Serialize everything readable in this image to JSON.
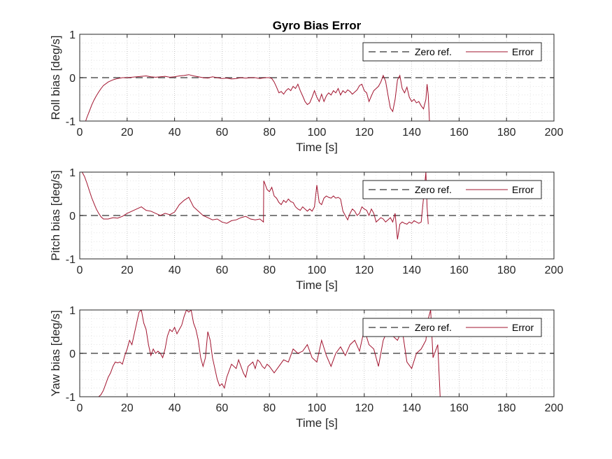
{
  "chart_data": [
    {
      "type": "line",
      "title": "Gyro Bias Error",
      "xlabel": "Time [s]",
      "ylabel": "Roll bias [deg/s]",
      "xlim": [
        0,
        200
      ],
      "ylim": [
        -1,
        1
      ],
      "xticks": [
        "0",
        "20",
        "40",
        "60",
        "80",
        "100",
        "120",
        "140",
        "160",
        "180",
        "200"
      ],
      "yticks": [
        "-1",
        "0",
        "1"
      ],
      "grid": true,
      "minor_grid": true,
      "legend": "top-right",
      "series": [
        {
          "name": "Zero ref.",
          "color": "#555555",
          "style": "dashed",
          "x": [
            0,
            200
          ],
          "y": [
            0,
            0
          ]
        },
        {
          "name": "Error",
          "color": "#a2142f",
          "style": "solid",
          "x": [
            2.5,
            3,
            4,
            5,
            6,
            7,
            8,
            9,
            10,
            12,
            14,
            16,
            18,
            20,
            22,
            24,
            26,
            28,
            30,
            32,
            34,
            36,
            38,
            40,
            42,
            44,
            46,
            48,
            50,
            52,
            54,
            56,
            58,
            60,
            62,
            64,
            66,
            68,
            70,
            72,
            74,
            76,
            78,
            80,
            81,
            82,
            83,
            84,
            85,
            86,
            87,
            88,
            89,
            90,
            91,
            92,
            93,
            94,
            95,
            96,
            97,
            98,
            99,
            100,
            101,
            102,
            103,
            104,
            105,
            106,
            107,
            108,
            109,
            110,
            111,
            112,
            113,
            114,
            115,
            116,
            117,
            118,
            119,
            120,
            121,
            122,
            123,
            124,
            125,
            126,
            127,
            128,
            129,
            130,
            131,
            132,
            133,
            134,
            135,
            136,
            137,
            138,
            139,
            140,
            141,
            142,
            143,
            144,
            145,
            146,
            146.5,
            147,
            147.5
          ],
          "y": [
            -1.0,
            -0.92,
            -0.78,
            -0.64,
            -0.52,
            -0.42,
            -0.33,
            -0.25,
            -0.18,
            -0.1,
            -0.05,
            -0.02,
            0.0,
            0.0,
            0.01,
            0.02,
            0.03,
            0.04,
            0.02,
            0.01,
            0.02,
            0.03,
            0.01,
            0.02,
            0.04,
            0.05,
            0.07,
            0.04,
            0.02,
            0.0,
            -0.01,
            0.02,
            0.0,
            -0.02,
            -0.01,
            -0.03,
            -0.02,
            0.0,
            -0.01,
            0.0,
            0.0,
            -0.02,
            0.0,
            0.0,
            -0.02,
            -0.1,
            -0.22,
            -0.35,
            -0.32,
            -0.38,
            -0.3,
            -0.25,
            -0.3,
            -0.2,
            -0.25,
            -0.15,
            -0.3,
            -0.42,
            -0.55,
            -0.62,
            -0.58,
            -0.45,
            -0.3,
            -0.45,
            -0.55,
            -0.38,
            -0.55,
            -0.42,
            -0.35,
            -0.4,
            -0.3,
            -0.35,
            -0.25,
            -0.4,
            -0.3,
            -0.35,
            -0.28,
            -0.32,
            -0.38,
            -0.33,
            -0.28,
            -0.18,
            -0.15,
            -0.3,
            -0.35,
            -0.55,
            -0.42,
            -0.3,
            -0.25,
            -0.2,
            -0.1,
            0.05,
            -0.08,
            -0.4,
            -0.7,
            -0.78,
            -0.5,
            -0.05,
            0.05,
            -0.25,
            -0.35,
            -0.22,
            -0.45,
            -0.55,
            -0.5,
            -0.58,
            -0.55,
            -0.65,
            -0.72,
            -0.5,
            -0.15,
            -0.4,
            -1.0
          ]
        }
      ]
    },
    {
      "type": "line",
      "xlabel": "Time [s]",
      "ylabel": "Pitch bias [deg/s]",
      "xlim": [
        0,
        200
      ],
      "ylim": [
        -1,
        1
      ],
      "xticks": [
        "0",
        "20",
        "40",
        "60",
        "80",
        "100",
        "120",
        "140",
        "160",
        "180",
        "200"
      ],
      "yticks": [
        "-1",
        "0",
        "1"
      ],
      "grid": true,
      "minor_grid": true,
      "legend": "top-right",
      "series": [
        {
          "name": "Zero ref.",
          "color": "#555555",
          "style": "dashed",
          "x": [
            0,
            200
          ],
          "y": [
            0,
            0
          ]
        },
        {
          "name": "Error",
          "color": "#a2142f",
          "style": "solid",
          "x": [
            1,
            2,
            3,
            4,
            5,
            6,
            7,
            8,
            9,
            10,
            12,
            14,
            16,
            18,
            20,
            22,
            24,
            26,
            28,
            30,
            32,
            34,
            36,
            38,
            40,
            42,
            44,
            46,
            48,
            50,
            52,
            54,
            56,
            58,
            60,
            62,
            64,
            66,
            68,
            70,
            72,
            74,
            76,
            77.5,
            77.6,
            78,
            79,
            80,
            81,
            82,
            83,
            84,
            85,
            86,
            87,
            88,
            89,
            90,
            91,
            92,
            93,
            94,
            95,
            96,
            97,
            98,
            99,
            100,
            100.5,
            101,
            102,
            103,
            104,
            105,
            106,
            107,
            108,
            109,
            110,
            111,
            112,
            113,
            114,
            115,
            116,
            117,
            118,
            119,
            120,
            121,
            122,
            123,
            124,
            125,
            126,
            127,
            128,
            129,
            130,
            131,
            132,
            133,
            134,
            135,
            136,
            137,
            138,
            139,
            140,
            141,
            142,
            143,
            144,
            145,
            146,
            146.5,
            147
          ],
          "y": [
            1.0,
            0.9,
            0.75,
            0.58,
            0.42,
            0.28,
            0.15,
            0.05,
            -0.03,
            -0.08,
            -0.08,
            -0.05,
            -0.06,
            -0.02,
            0.05,
            0.1,
            0.15,
            0.2,
            0.12,
            0.1,
            0.05,
            0.0,
            0.05,
            0.02,
            0.08,
            0.25,
            0.35,
            0.42,
            0.2,
            0.1,
            0.0,
            -0.05,
            -0.1,
            -0.08,
            -0.15,
            -0.18,
            -0.12,
            -0.1,
            -0.05,
            -0.02,
            -0.08,
            -0.1,
            -0.08,
            -0.15,
            0.8,
            0.75,
            0.6,
            0.55,
            0.65,
            0.45,
            0.4,
            0.3,
            0.25,
            0.35,
            0.3,
            0.38,
            0.32,
            0.3,
            0.2,
            0.15,
            0.12,
            0.2,
            0.15,
            0.1,
            0.15,
            0.1,
            0.2,
            0.7,
            0.5,
            0.3,
            0.25,
            0.4,
            0.45,
            0.42,
            0.4,
            0.45,
            0.4,
            0.42,
            0.38,
            0.1,
            0.0,
            -0.1,
            0.05,
            0.15,
            0.1,
            0.0,
            0.05,
            0.2,
            0.15,
            0.12,
            0.0,
            0.15,
            0.05,
            -0.15,
            -0.1,
            -0.05,
            -0.08,
            -0.15,
            -0.1,
            -0.05,
            -0.15,
            0.05,
            -0.55,
            -0.2,
            -0.15,
            -0.18,
            -0.2,
            -0.15,
            -0.18,
            -0.12,
            -0.15,
            -0.18,
            -0.15,
            0.4,
            1.0,
            0.2,
            -0.2
          ]
        }
      ]
    },
    {
      "type": "line",
      "xlabel": "Time [s]",
      "ylabel": "Yaw bias [deg/s]",
      "xlim": [
        0,
        200
      ],
      "ylim": [
        -1,
        1
      ],
      "xticks": [
        "0",
        "20",
        "40",
        "60",
        "80",
        "100",
        "120",
        "140",
        "160",
        "180",
        "200"
      ],
      "yticks": [
        "-1",
        "0",
        "1"
      ],
      "grid": true,
      "minor_grid": true,
      "legend": "top-right",
      "series": [
        {
          "name": "Zero ref.",
          "color": "#555555",
          "style": "dashed",
          "x": [
            0,
            200
          ],
          "y": [
            0,
            0
          ]
        },
        {
          "name": "Error",
          "color": "#a2142f",
          "style": "solid",
          "x": [
            8,
            9,
            10,
            11,
            12,
            13,
            14,
            15,
            16,
            17,
            18,
            19,
            20,
            21,
            22,
            23,
            24,
            25,
            26,
            27,
            28,
            29,
            30,
            31,
            32,
            33,
            34,
            35,
            36,
            37,
            38,
            39,
            40,
            41,
            42,
            43,
            44,
            45,
            46,
            47,
            48,
            49,
            50,
            51,
            52,
            53,
            54,
            55,
            56,
            57,
            58,
            59,
            60,
            61,
            62,
            63,
            64,
            65,
            66,
            67,
            68,
            69,
            70,
            71,
            72,
            73,
            74,
            75,
            76,
            77,
            78,
            79,
            80,
            82,
            84,
            86,
            88,
            90,
            92,
            94,
            96,
            98,
            100,
            102,
            104,
            106,
            108,
            110,
            112,
            114,
            116,
            118,
            120,
            122,
            124,
            126,
            128,
            130,
            132,
            134,
            136,
            138,
            140,
            142,
            144,
            146,
            147,
            148,
            149,
            150,
            151,
            151.5,
            152
          ],
          "y": [
            -1.0,
            -0.95,
            -0.85,
            -0.7,
            -0.55,
            -0.45,
            -0.3,
            -0.2,
            -0.22,
            -0.2,
            -0.25,
            -0.05,
            0.1,
            0.3,
            0.2,
            0.45,
            0.7,
            0.95,
            1.0,
            0.7,
            0.55,
            0.2,
            -0.05,
            0.1,
            0.0,
            0.05,
            0.0,
            -0.1,
            0.1,
            0.4,
            0.55,
            0.5,
            0.6,
            0.45,
            0.55,
            0.65,
            0.85,
            1.0,
            0.95,
            1.0,
            0.7,
            0.55,
            0.3,
            -0.1,
            -0.3,
            -0.1,
            0.5,
            0.3,
            -0.1,
            -0.35,
            -0.6,
            -0.75,
            -0.7,
            -0.8,
            -0.55,
            -0.4,
            -0.25,
            -0.3,
            -0.35,
            -0.15,
            -0.3,
            -0.45,
            -0.55,
            -0.3,
            -0.25,
            -0.2,
            -0.35,
            -0.15,
            -0.2,
            -0.3,
            -0.35,
            -0.25,
            -0.3,
            -0.45,
            -0.3,
            -0.15,
            -0.2,
            0.1,
            0.0,
            0.05,
            0.2,
            -0.1,
            -0.2,
            0.3,
            -0.05,
            -0.3,
            0.0,
            0.15,
            -0.05,
            0.2,
            0.3,
            0.05,
            0.55,
            0.2,
            0.1,
            -0.3,
            0.3,
            0.55,
            0.4,
            0.3,
            0.55,
            -0.2,
            -0.35,
            0.0,
            0.1,
            0.3,
            0.8,
            1.0,
            -0.1,
            0.05,
            0.2,
            -0.4,
            -1.0
          ]
        }
      ]
    }
  ]
}
